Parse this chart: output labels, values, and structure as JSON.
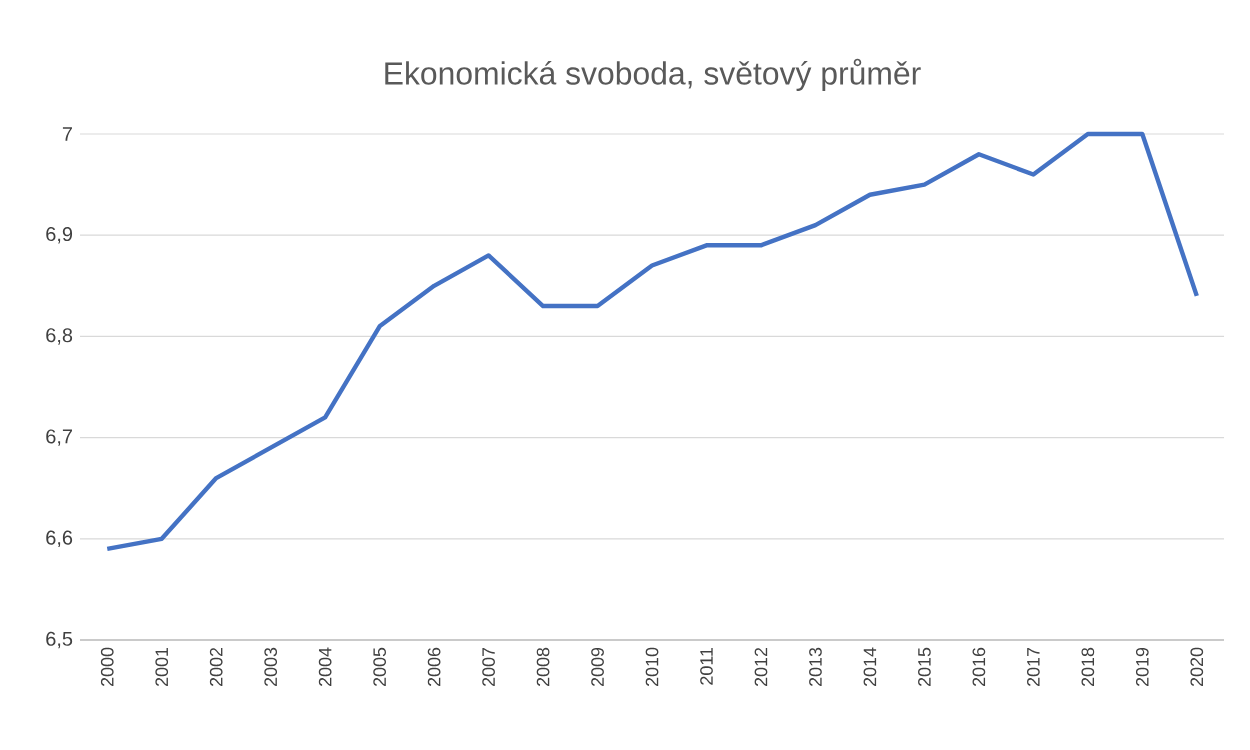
{
  "chart_data": {
    "type": "line",
    "title": "Ekonomická svoboda, světový průměr",
    "categories": [
      "2000",
      "2001",
      "2002",
      "2003",
      "2004",
      "2005",
      "2006",
      "2007",
      "2008",
      "2009",
      "2010",
      "2011",
      "2012",
      "2013",
      "2014",
      "2015",
      "2016",
      "2017",
      "2018",
      "2019",
      "2020"
    ],
    "series": [
      {
        "color": "#4472c4",
        "values": [
          6.59,
          6.6,
          6.66,
          6.69,
          6.72,
          6.81,
          6.85,
          6.88,
          6.83,
          6.83,
          6.87,
          6.89,
          6.89,
          6.91,
          6.94,
          6.95,
          6.98,
          6.96,
          7.0,
          7.0,
          6.84
        ]
      }
    ],
    "ylim": [
      6.5,
      7.0
    ],
    "yticks": [
      {
        "value": 6.5,
        "label": "6,5"
      },
      {
        "value": 6.6,
        "label": "6,6"
      },
      {
        "value": 6.7,
        "label": "6,7"
      },
      {
        "value": 6.8,
        "label": "6,8"
      },
      {
        "value": 6.9,
        "label": "6,9"
      },
      {
        "value": 7,
        "label": "7"
      }
    ],
    "grid": "y",
    "marker": "none",
    "line_style": "solid"
  }
}
